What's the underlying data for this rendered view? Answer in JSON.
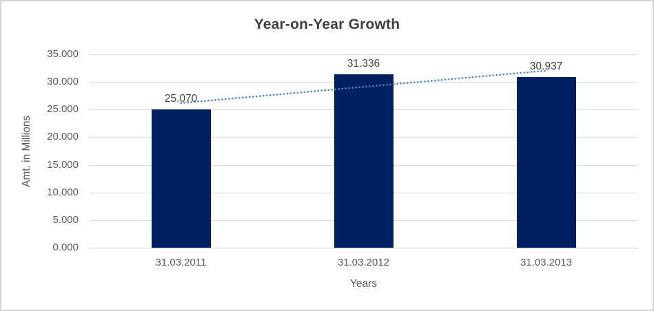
{
  "chart_data": {
    "type": "bar",
    "title": "Year-on-Year Growth",
    "xlabel": "Years",
    "ylabel": "Amt. in Millions",
    "categories": [
      "31.03.2011",
      "31.03.2012",
      "31.03.2013"
    ],
    "values": [
      25.07,
      31.336,
      30.937
    ],
    "data_labels": [
      "25.070",
      "31.336",
      "30.937"
    ],
    "ytick_labels": [
      "35.000",
      "30.000",
      "25.000",
      "20.000",
      "15.000",
      "10.000",
      "5.000",
      "0.000"
    ],
    "ylim": [
      0,
      35
    ],
    "grid": true,
    "legend": "none",
    "trendline": {
      "type": "linear",
      "style": "dotted"
    },
    "colors": {
      "bar": "#002060",
      "trendline": "#4a86c8",
      "gridline": "#d9d9d9",
      "axis_line": "#c6c6c6",
      "title_text": "#3f3f3f",
      "tick_text": "#595959",
      "label_text": "#444444",
      "frame_border": "#d4d4d4"
    }
  }
}
